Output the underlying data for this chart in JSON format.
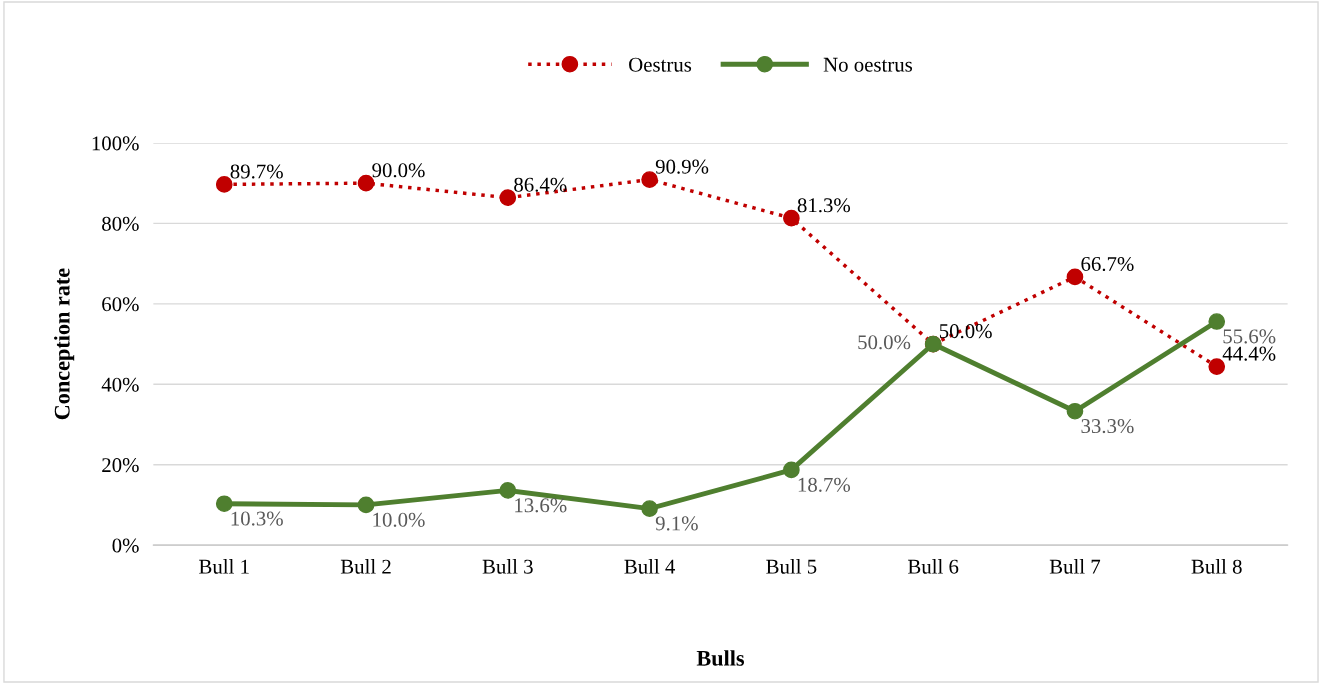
{
  "chart_data": {
    "type": "line",
    "xlabel": "Bulls",
    "ylabel": "Conception rate",
    "categories": [
      "Bull 1",
      "Bull 2",
      "Bull 3",
      "Bull 4",
      "Bull 5",
      "Bull 6",
      "Bull 7",
      "Bull 8"
    ],
    "series": [
      {
        "name": "Oestrus",
        "color": "#c00000",
        "line_style": "dotted",
        "marker": "circle",
        "values": [
          89.7,
          90.0,
          86.4,
          90.9,
          81.3,
          50.0,
          66.7,
          44.4
        ],
        "value_labels": [
          "89.7%",
          "90.0%",
          "86.4%",
          "90.9%",
          "81.3%",
          "50.0%",
          "66.7%",
          "44.4%"
        ]
      },
      {
        "name": "No oestrus",
        "color": "#4f7f2f",
        "line_style": "solid",
        "marker": "circle",
        "values": [
          10.3,
          10.0,
          13.6,
          9.1,
          18.7,
          50.0,
          33.3,
          55.6
        ],
        "value_labels": [
          "10.3%",
          "10.0%",
          "13.6%",
          "9.1%",
          "18.7%",
          "50.0%",
          "33.3%",
          "55.6%"
        ]
      }
    ],
    "ylim": [
      0,
      100
    ],
    "yticks": [
      {
        "value": 0,
        "label": "0%"
      },
      {
        "value": 20,
        "label": "20%"
      },
      {
        "value": 40,
        "label": "40%"
      },
      {
        "value": 60,
        "label": "60%"
      },
      {
        "value": 80,
        "label": "80%"
      },
      {
        "value": 100,
        "label": "100%"
      }
    ],
    "grid": "y",
    "legend": "top"
  }
}
